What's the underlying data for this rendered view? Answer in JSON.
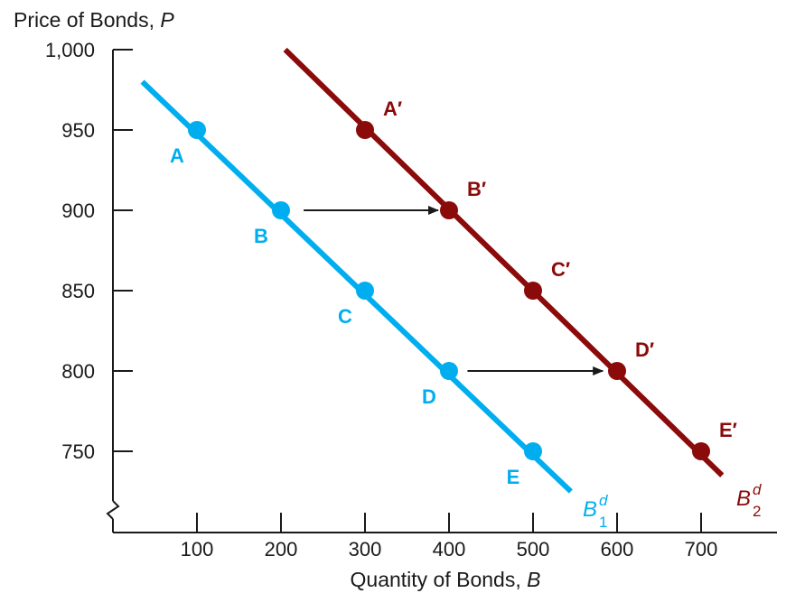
{
  "chart_data": {
    "type": "line",
    "ylabel": "Price of Bonds, ",
    "ylabel_var": "P",
    "xlabel": "Quantity of Bonds, ",
    "xlabel_var": "B",
    "x_ticks": [
      100,
      200,
      300,
      400,
      500,
      600,
      700
    ],
    "x_tick_labels": [
      "100",
      "200",
      "300",
      "400",
      "500",
      "600",
      "700"
    ],
    "y_ticks": [
      750,
      800,
      850,
      900,
      950,
      1000
    ],
    "y_tick_labels": [
      "750",
      "800",
      "850",
      "900",
      "950",
      "1,000"
    ],
    "xlim": [
      0,
      770
    ],
    "ylim": [
      700,
      1000
    ],
    "y_axis_break": true,
    "grid": false,
    "colors": {
      "series1": "#00aeef",
      "series2": "#8b0a0a",
      "axis": "#1a1a1a",
      "arrow": "#1a1a1a"
    },
    "series": [
      {
        "name_base": "B",
        "name_sup": "d",
        "name_sub": "1",
        "line_x": [
          35,
          545
        ],
        "line_y": [
          980,
          725
        ],
        "points": [
          {
            "label": "A",
            "x": 100,
            "y": 950
          },
          {
            "label": "B",
            "x": 200,
            "y": 900
          },
          {
            "label": "C",
            "x": 300,
            "y": 850
          },
          {
            "label": "D",
            "x": 400,
            "y": 800
          },
          {
            "label": "E",
            "x": 500,
            "y": 750
          }
        ]
      },
      {
        "name_base": "B",
        "name_sup": "d",
        "name_sub": "2",
        "line_x": [
          205,
          725
        ],
        "line_y": [
          1000,
          735
        ],
        "points": [
          {
            "label": "A′",
            "x": 300,
            "y": 950
          },
          {
            "label": "B′",
            "x": 400,
            "y": 900
          },
          {
            "label": "C′",
            "x": 500,
            "y": 850
          },
          {
            "label": "D′",
            "x": 600,
            "y": 800
          },
          {
            "label": "E′",
            "x": 700,
            "y": 750
          }
        ]
      }
    ],
    "arrows": [
      {
        "from_x": 227,
        "to_x": 387,
        "y": 900
      },
      {
        "from_x": 422,
        "to_x": 583,
        "y": 800
      }
    ]
  }
}
